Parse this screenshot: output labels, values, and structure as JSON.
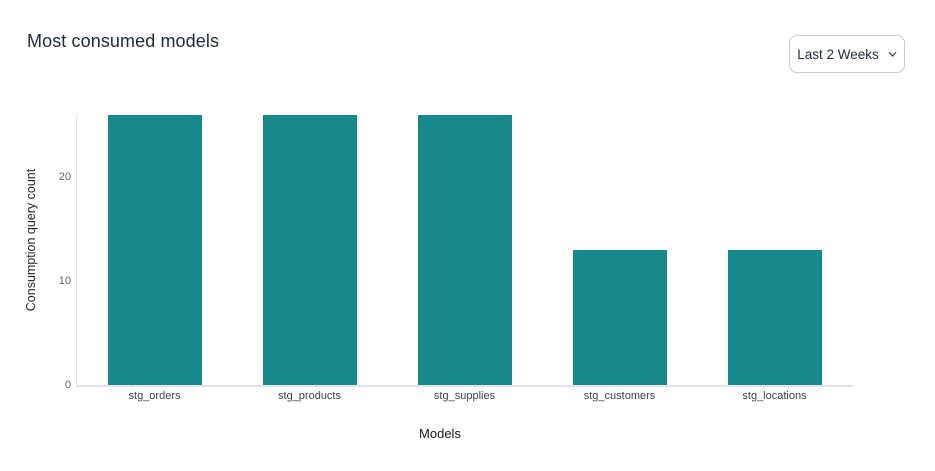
{
  "header": {
    "title": "Most consumed models"
  },
  "filter": {
    "selected_label": "Last 2 Weeks",
    "chevron_icon": "chevron-down"
  },
  "chart_data": {
    "type": "bar",
    "title": "Most consumed models",
    "categories": [
      "stg_orders",
      "stg_products",
      "stg_supplies",
      "stg_customers",
      "stg_locations"
    ],
    "values": [
      26,
      26,
      26,
      13,
      13
    ],
    "xlabel": "Models",
    "ylabel": "Consumption query count",
    "yticks": [
      0,
      10,
      20
    ],
    "ylim": [
      0,
      26
    ],
    "grid": false,
    "legend": null,
    "bar_color": "#17898d",
    "axis_color": "#e1e4ea"
  }
}
